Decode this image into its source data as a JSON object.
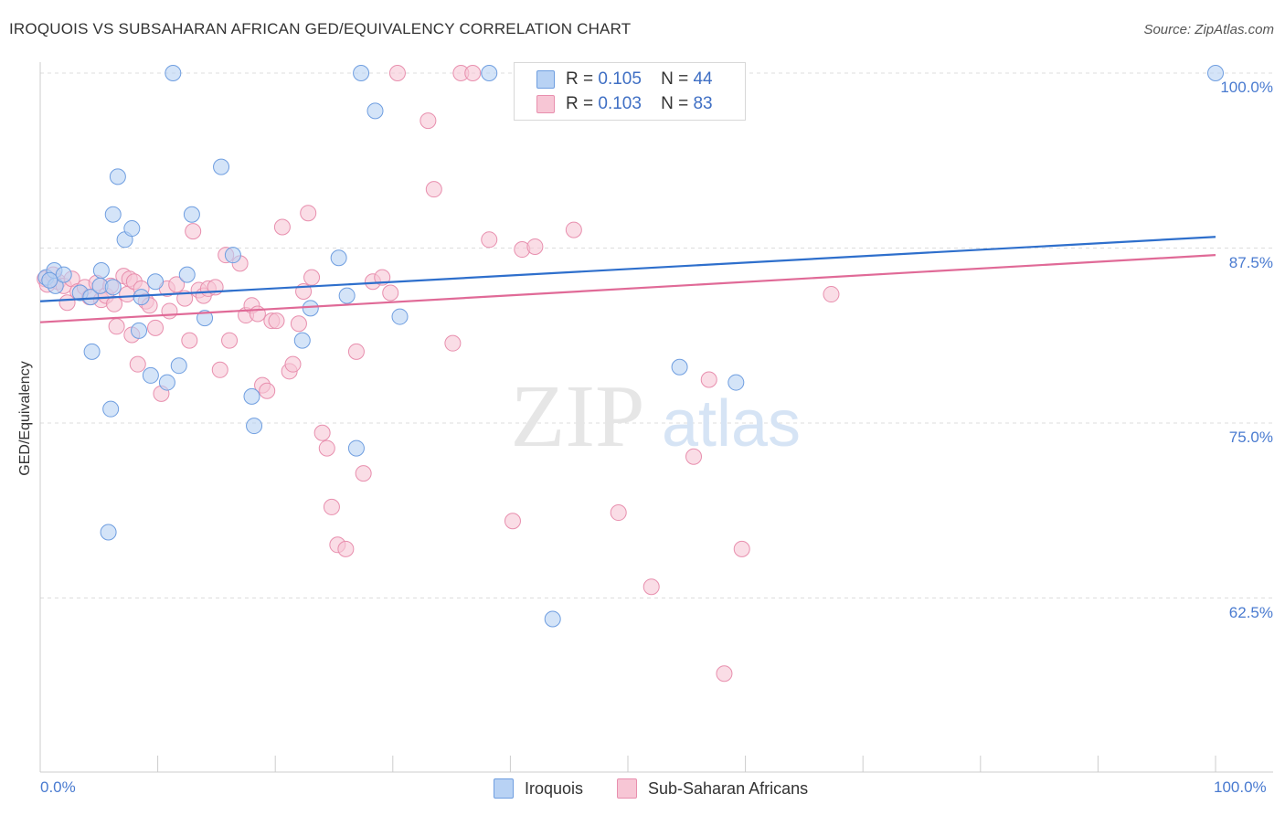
{
  "title": "IROQUOIS VS SUBSAHARAN AFRICAN GED/EQUIVALENCY CORRELATION CHART",
  "source": "Source: ZipAtlas.com",
  "watermark": {
    "zip": "ZIP",
    "atlas": "atlas"
  },
  "colors": {
    "blue_fill": "#b8d2f4",
    "blue_stroke": "#6f9ee0",
    "blue_line": "#2e6fcc",
    "pink_fill": "#f7c6d5",
    "pink_stroke": "#e88fae",
    "pink_line": "#e06a97",
    "tick_text": "#4a7bd0",
    "grid": "#dddddd"
  },
  "legend": {
    "items": [
      {
        "r_label": "R =",
        "r_value": "0.105",
        "n_label": "N =",
        "n_value": "44"
      },
      {
        "r_label": "R =",
        "r_value": "0.103",
        "n_label": "N =",
        "n_value": "83"
      }
    ]
  },
  "bottom_legend": [
    "Iroquois",
    "Sub-Saharan Africans"
  ],
  "chart_data": {
    "type": "scatter",
    "title": "IROQUOIS VS SUBSAHARAN AFRICAN GED/EQUIVALENCY CORRELATION CHART",
    "xlabel": "",
    "ylabel": "GED/Equivalency",
    "xlim": [
      0,
      100
    ],
    "ylim": [
      52,
      101
    ],
    "x_tick_labels": [
      "0.0%",
      "100.0%"
    ],
    "y_ticks": [
      62.5,
      75.0,
      87.5,
      100.0
    ],
    "y_tick_labels": [
      "62.5%",
      "75.0%",
      "87.5%",
      "100.0%"
    ],
    "grid": true,
    "series": [
      {
        "name": "Iroquois",
        "color": "#b8d2f4",
        "r": 0.105,
        "n": 44,
        "trend": {
          "x": [
            0,
            100
          ],
          "y": [
            83.7,
            88.3
          ]
        },
        "points": [
          [
            0.5,
            85.4
          ],
          [
            1.2,
            85.9
          ],
          [
            1.3,
            84.8
          ],
          [
            2.0,
            85.6
          ],
          [
            3.4,
            84.3
          ],
          [
            4.4,
            80.1
          ],
          [
            4.3,
            84.0
          ],
          [
            5.2,
            85.9
          ],
          [
            5.1,
            84.8
          ],
          [
            5.8,
            67.2
          ],
          [
            6.2,
            84.7
          ],
          [
            6.0,
            76.0
          ],
          [
            6.2,
            89.9
          ],
          [
            6.6,
            92.6
          ],
          [
            7.2,
            88.1
          ],
          [
            7.8,
            88.9
          ],
          [
            8.6,
            84.0
          ],
          [
            8.4,
            81.6
          ],
          [
            9.4,
            78.4
          ],
          [
            9.8,
            85.1
          ],
          [
            10.8,
            77.9
          ],
          [
            11.3,
            100.0
          ],
          [
            11.8,
            79.1
          ],
          [
            12.5,
            85.6
          ],
          [
            12.9,
            89.9
          ],
          [
            14.0,
            82.5
          ],
          [
            15.4,
            93.3
          ],
          [
            16.4,
            87.0
          ],
          [
            18.0,
            76.9
          ],
          [
            18.2,
            74.8
          ],
          [
            22.3,
            80.9
          ],
          [
            23.0,
            83.2
          ],
          [
            25.4,
            86.8
          ],
          [
            26.1,
            84.1
          ],
          [
            26.9,
            73.2
          ],
          [
            27.3,
            100.0
          ],
          [
            28.5,
            97.3
          ],
          [
            30.6,
            82.6
          ],
          [
            38.2,
            100.0
          ],
          [
            43.6,
            61.0
          ],
          [
            54.4,
            79.0
          ],
          [
            59.2,
            77.9
          ],
          [
            100.0,
            100.0
          ],
          [
            0.8,
            85.2
          ]
        ]
      },
      {
        "name": "Sub-Saharan Africans",
        "color": "#f7c6d5",
        "r": 0.103,
        "n": 83,
        "trend": {
          "x": [
            0,
            100
          ],
          "y": [
            82.2,
            87.0
          ]
        },
        "points": [
          [
            0.4,
            85.3
          ],
          [
            0.6,
            84.9
          ],
          [
            1.1,
            85.6
          ],
          [
            1.5,
            85.1
          ],
          [
            2.0,
            84.8
          ],
          [
            2.3,
            83.6
          ],
          [
            2.7,
            85.3
          ],
          [
            3.2,
            84.4
          ],
          [
            3.8,
            84.7
          ],
          [
            4.2,
            84.0
          ],
          [
            4.8,
            85.0
          ],
          [
            5.2,
            83.8
          ],
          [
            5.6,
            84.1
          ],
          [
            6.0,
            84.8
          ],
          [
            6.3,
            83.5
          ],
          [
            6.5,
            81.9
          ],
          [
            7.1,
            85.5
          ],
          [
            7.4,
            84.2
          ],
          [
            7.6,
            85.3
          ],
          [
            7.8,
            81.3
          ],
          [
            8.0,
            85.1
          ],
          [
            8.3,
            79.2
          ],
          [
            8.6,
            84.6
          ],
          [
            9.0,
            83.7
          ],
          [
            9.3,
            83.4
          ],
          [
            9.8,
            81.8
          ],
          [
            10.3,
            77.1
          ],
          [
            10.8,
            84.6
          ],
          [
            11.0,
            83.0
          ],
          [
            11.6,
            84.9
          ],
          [
            12.3,
            83.9
          ],
          [
            12.7,
            80.9
          ],
          [
            13.0,
            88.7
          ],
          [
            13.5,
            84.5
          ],
          [
            13.9,
            84.1
          ],
          [
            14.3,
            84.6
          ],
          [
            14.9,
            84.7
          ],
          [
            15.3,
            78.8
          ],
          [
            15.8,
            87.0
          ],
          [
            16.1,
            80.9
          ],
          [
            17.0,
            86.4
          ],
          [
            17.5,
            82.7
          ],
          [
            18.0,
            83.4
          ],
          [
            18.5,
            82.8
          ],
          [
            18.9,
            77.7
          ],
          [
            19.3,
            77.3
          ],
          [
            19.7,
            82.3
          ],
          [
            20.1,
            82.3
          ],
          [
            20.6,
            89.0
          ],
          [
            21.2,
            78.7
          ],
          [
            21.5,
            79.2
          ],
          [
            22.0,
            82.1
          ],
          [
            22.4,
            84.4
          ],
          [
            22.8,
            90.0
          ],
          [
            23.1,
            85.4
          ],
          [
            24.0,
            74.3
          ],
          [
            24.4,
            73.2
          ],
          [
            24.8,
            69.0
          ],
          [
            25.3,
            66.3
          ],
          [
            26.0,
            66.0
          ],
          [
            26.9,
            80.1
          ],
          [
            27.5,
            71.4
          ],
          [
            28.3,
            85.1
          ],
          [
            29.1,
            85.4
          ],
          [
            29.8,
            84.3
          ],
          [
            30.4,
            100.0
          ],
          [
            33.0,
            96.6
          ],
          [
            33.5,
            91.7
          ],
          [
            35.1,
            80.7
          ],
          [
            35.8,
            100.0
          ],
          [
            36.8,
            100.0
          ],
          [
            38.2,
            88.1
          ],
          [
            40.2,
            68.0
          ],
          [
            41.0,
            87.4
          ],
          [
            42.1,
            87.6
          ],
          [
            45.4,
            88.8
          ],
          [
            49.2,
            68.6
          ],
          [
            52.0,
            63.3
          ],
          [
            55.6,
            72.6
          ],
          [
            56.9,
            78.1
          ],
          [
            58.2,
            57.1
          ],
          [
            59.7,
            66.0
          ],
          [
            67.3,
            84.2
          ]
        ]
      }
    ]
  }
}
